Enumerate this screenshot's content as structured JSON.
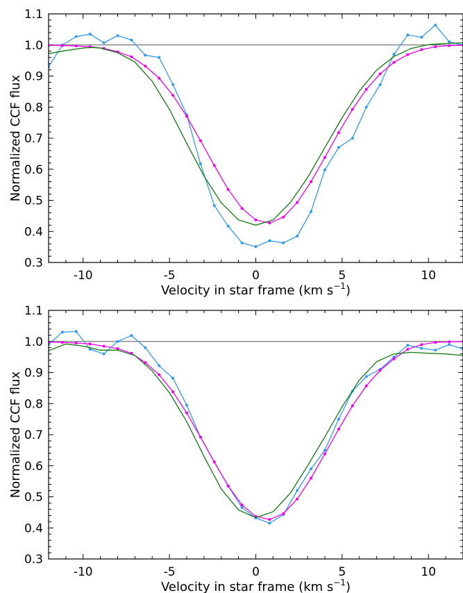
{
  "chart_data": [
    {
      "type": "line",
      "xlabel": "Velocity in star frame (km s",
      "xlabel_sup": "−1",
      "xlabel_end": ")",
      "ylabel": "Normalized CCF flux",
      "xlim": [
        -12,
        12
      ],
      "ylim": [
        0.3,
        1.1
      ],
      "xticks": [
        -10,
        -5,
        0,
        5,
        10
      ],
      "yticks": [
        0.3,
        0.4,
        0.5,
        0.6,
        0.7,
        0.8,
        0.9,
        1.0,
        1.1
      ],
      "xtick_labels": [
        "-10",
        "-5",
        "0",
        "5",
        "10"
      ],
      "ytick_labels": [
        "0.3",
        "0.4",
        "0.5",
        "0.6",
        "0.7",
        "0.8",
        "0.9",
        "1.0",
        "1.1"
      ],
      "reference_line": 1.0,
      "series": [
        {
          "color": "#3399ee",
          "markers": true,
          "x": [
            -12,
            -11.2,
            -10.4,
            -9.6,
            -8.8,
            -8.0,
            -7.2,
            -6.4,
            -5.6,
            -4.8,
            -4.0,
            -3.2,
            -2.4,
            -1.6,
            -0.8,
            0.0,
            0.8,
            1.6,
            2.4,
            3.2,
            4.0,
            4.8,
            5.6,
            6.4,
            7.2,
            8.0,
            8.8,
            9.6,
            10.4,
            11.2,
            12
          ],
          "y": [
            0.93,
            1.0,
            1.027,
            1.035,
            1.007,
            1.03,
            1.016,
            0.967,
            0.96,
            0.873,
            0.775,
            0.617,
            0.483,
            0.417,
            0.363,
            0.351,
            0.37,
            0.363,
            0.385,
            0.464,
            0.598,
            0.67,
            0.7,
            0.8,
            0.872,
            0.97,
            1.032,
            1.025,
            1.064,
            1.01,
            1.0
          ]
        },
        {
          "color": "#ee00ee",
          "markers": true,
          "x": [
            -12,
            -11.2,
            -10.4,
            -9.6,
            -8.8,
            -8.0,
            -7.2,
            -6.4,
            -5.6,
            -4.8,
            -4.0,
            -3.2,
            -2.4,
            -1.6,
            -0.8,
            0.0,
            0.8,
            1.6,
            2.4,
            3.2,
            4.0,
            4.8,
            5.6,
            6.4,
            7.2,
            8.0,
            8.8,
            9.6,
            10.4,
            11.2,
            12
          ],
          "y": [
            0.999,
            0.998,
            0.997,
            0.994,
            0.989,
            0.978,
            0.962,
            0.932,
            0.893,
            0.838,
            0.77,
            0.692,
            0.612,
            0.535,
            0.474,
            0.437,
            0.427,
            0.446,
            0.493,
            0.56,
            0.638,
            0.718,
            0.793,
            0.857,
            0.907,
            0.944,
            0.969,
            0.985,
            0.994,
            0.998,
            0.999
          ]
        },
        {
          "color": "#117711",
          "markers": false,
          "x": [
            -12,
            -11,
            -10,
            -9.5,
            -9,
            -8,
            -7,
            -6,
            -5,
            -4,
            -3,
            -2,
            -1,
            0,
            1,
            2,
            3,
            4,
            5,
            6,
            7,
            8,
            9,
            10,
            11,
            12
          ],
          "y": [
            0.972,
            0.982,
            0.99,
            0.992,
            0.99,
            0.975,
            0.945,
            0.883,
            0.793,
            0.683,
            0.578,
            0.492,
            0.437,
            0.42,
            0.437,
            0.493,
            0.573,
            0.67,
            0.766,
            0.852,
            0.919,
            0.963,
            0.989,
            1.001,
            1.005,
            1.007
          ]
        }
      ]
    },
    {
      "type": "line",
      "xlabel": "Velocity in star frame (km s",
      "xlabel_sup": "−1",
      "xlabel_end": ")",
      "ylabel": "Normalized CCF flux",
      "xlim": [
        -12,
        12
      ],
      "ylim": [
        0.3,
        1.1
      ],
      "xticks": [
        -10,
        -5,
        0,
        5,
        10
      ],
      "yticks": [
        0.3,
        0.4,
        0.5,
        0.6,
        0.7,
        0.8,
        0.9,
        1.0,
        1.1
      ],
      "xtick_labels": [
        "-10",
        "-5",
        "0",
        "5",
        "10"
      ],
      "ytick_labels": [
        "0.3",
        "0.4",
        "0.5",
        "0.6",
        "0.7",
        "0.8",
        "0.9",
        "1.0",
        "1.1"
      ],
      "reference_line": 1.0,
      "series": [
        {
          "color": "#3399ee",
          "markers": true,
          "x": [
            -12,
            -11.2,
            -10.4,
            -9.6,
            -8.8,
            -8.0,
            -7.2,
            -6.4,
            -5.6,
            -4.8,
            -4.0,
            -3.2,
            -2.4,
            -1.6,
            -0.8,
            0.0,
            0.8,
            1.6,
            2.4,
            3.2,
            4.0,
            4.8,
            5.6,
            6.4,
            7.2,
            8.0,
            8.8,
            9.6,
            10.4,
            11.2,
            12
          ],
          "y": [
            0.99,
            1.03,
            1.032,
            0.975,
            0.96,
            1.0,
            1.019,
            0.98,
            0.922,
            0.882,
            0.795,
            0.692,
            0.612,
            0.535,
            0.465,
            0.432,
            0.415,
            0.443,
            0.52,
            0.59,
            0.65,
            0.75,
            0.84,
            0.887,
            0.91,
            0.95,
            0.988,
            0.978,
            0.972,
            0.99,
            0.976
          ]
        },
        {
          "color": "#ee00ee",
          "markers": true,
          "x": [
            -12,
            -11.2,
            -10.4,
            -9.6,
            -8.8,
            -8.0,
            -7.2,
            -6.4,
            -5.6,
            -4.8,
            -4.0,
            -3.2,
            -2.4,
            -1.6,
            -0.8,
            0.0,
            0.8,
            1.6,
            2.4,
            3.2,
            4.0,
            4.8,
            5.6,
            6.4,
            7.2,
            8.0,
            8.8,
            9.6,
            10.4,
            11.2,
            12
          ],
          "y": [
            0.998,
            0.997,
            0.995,
            0.992,
            0.985,
            0.977,
            0.962,
            0.932,
            0.893,
            0.838,
            0.77,
            0.692,
            0.612,
            0.535,
            0.474,
            0.437,
            0.427,
            0.446,
            0.493,
            0.56,
            0.638,
            0.718,
            0.793,
            0.857,
            0.907,
            0.944,
            0.975,
            0.99,
            0.997,
            0.999,
            1.0
          ]
        },
        {
          "color": "#117711",
          "markers": false,
          "x": [
            -12,
            -11,
            -10,
            -9,
            -8,
            -7,
            -6,
            -5,
            -4,
            -3,
            -2,
            -1,
            0,
            1,
            2,
            3,
            4,
            5,
            6,
            7,
            8,
            9,
            10,
            11,
            12
          ],
          "y": [
            0.97,
            0.992,
            0.985,
            0.972,
            0.972,
            0.955,
            0.905,
            0.835,
            0.742,
            0.63,
            0.525,
            0.458,
            0.433,
            0.452,
            0.512,
            0.6,
            0.693,
            0.79,
            0.876,
            0.935,
            0.96,
            0.965,
            0.962,
            0.96,
            0.955
          ]
        }
      ]
    }
  ],
  "colors": {
    "axis": "#000000",
    "reference_line": "#555555"
  }
}
